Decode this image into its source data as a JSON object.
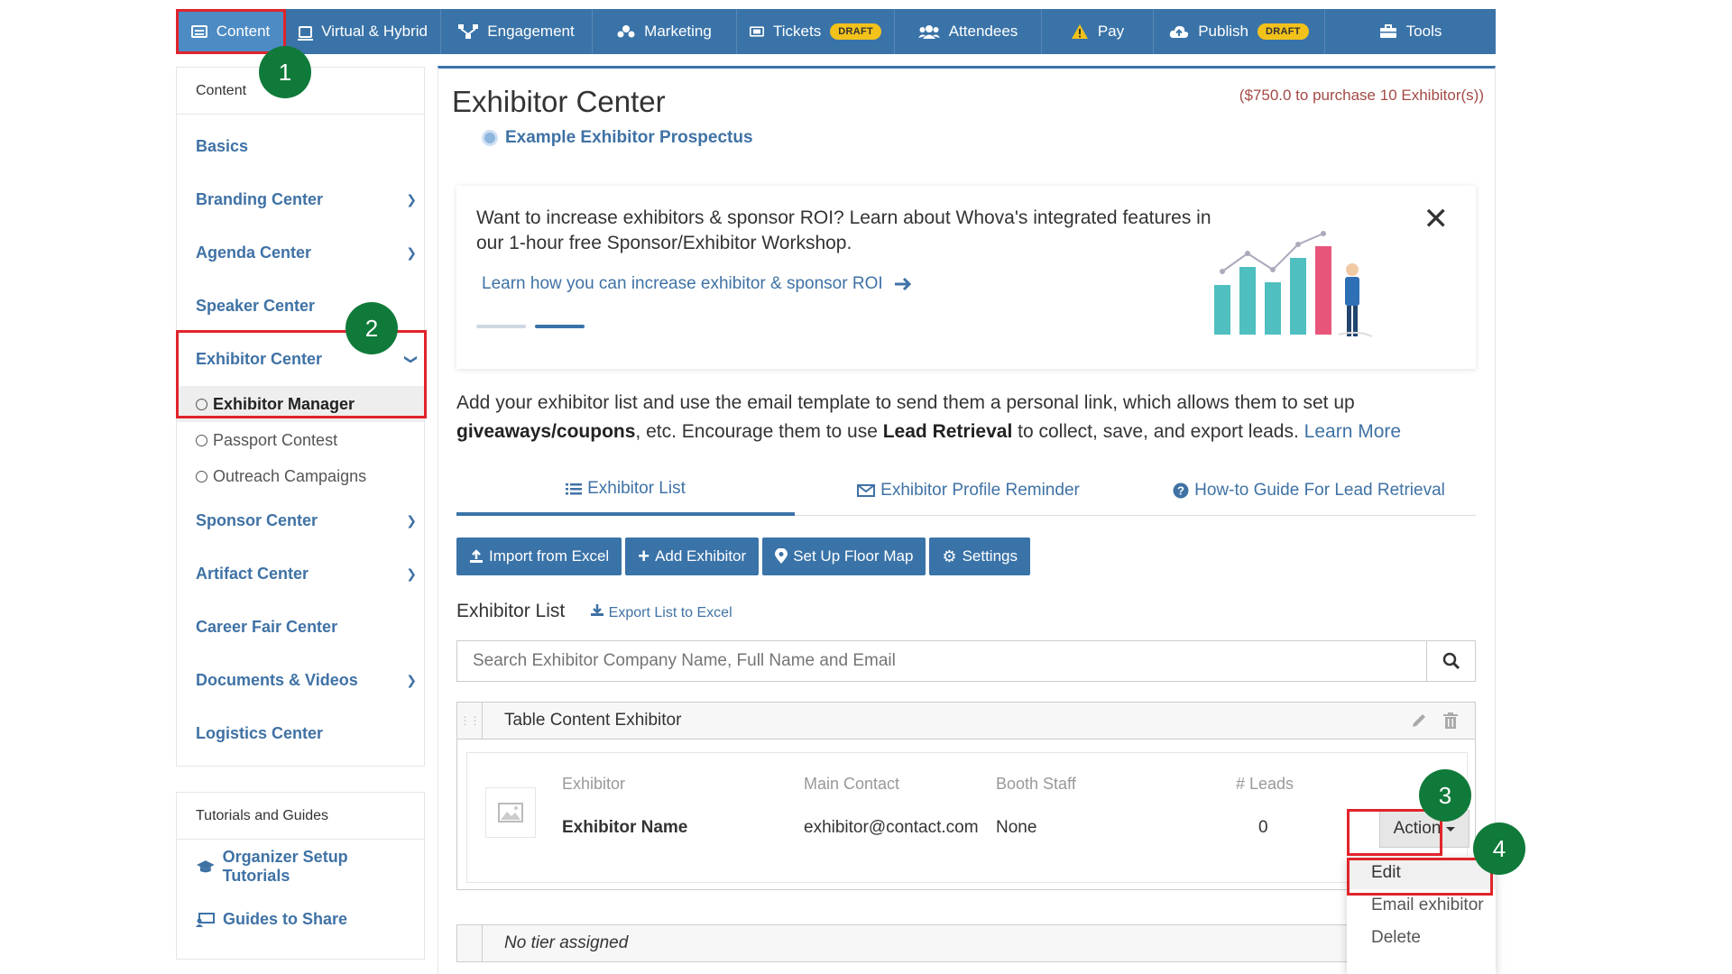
{
  "topnav": {
    "items": [
      {
        "label": "Content",
        "icon": "content-icon"
      },
      {
        "label": "Virtual & Hybrid",
        "icon": "monitor-icon"
      },
      {
        "label": "Engagement",
        "icon": "engagement-icon"
      },
      {
        "label": "Marketing",
        "icon": "marketing-icon"
      },
      {
        "label": "Tickets",
        "icon": "ticket-icon",
        "badge": "DRAFT"
      },
      {
        "label": "Attendees",
        "icon": "attendees-icon"
      },
      {
        "label": "Pay",
        "icon": "warning-icon"
      },
      {
        "label": "Publish",
        "icon": "cloud-upload-icon",
        "badge": "DRAFT"
      },
      {
        "label": "Tools",
        "icon": "toolbox-icon"
      }
    ]
  },
  "steps": [
    "1",
    "2",
    "3",
    "4"
  ],
  "sidebar": {
    "header": "Content",
    "items": [
      {
        "label": "Basics"
      },
      {
        "label": "Branding Center"
      },
      {
        "label": "Agenda Center"
      },
      {
        "label": "Speaker Center"
      },
      {
        "label": "Exhibitor Center"
      },
      {
        "label": "Sponsor Center"
      },
      {
        "label": "Artifact Center"
      },
      {
        "label": "Career Fair Center"
      },
      {
        "label": "Documents & Videos"
      },
      {
        "label": "Logistics Center"
      }
    ],
    "sub_items": [
      {
        "label": "Exhibitor Manager"
      },
      {
        "label": "Passport Contest"
      },
      {
        "label": "Outreach Campaigns"
      }
    ]
  },
  "tutorials": {
    "header": "Tutorials and Guides",
    "items": [
      {
        "label": "Organizer Setup Tutorials"
      },
      {
        "label": "Guides to Share"
      }
    ]
  },
  "main": {
    "title": "Exhibitor Center",
    "price_note": "($750.0 to purchase 10 Exhibitor(s))",
    "prospectus": "Example Exhibitor Prospectus",
    "banner": {
      "text": "Want to increase exhibitors & sponsor ROI? Learn about Whova's integrated features in our 1-hour free Sponsor/Exhibitor Workshop.",
      "link": "Learn how you can increase exhibitor & sponsor ROI"
    },
    "intro": {
      "part1": "Add your exhibitor list and use the email template to send them a personal link, which allows them to set up ",
      "bold1": "giveaways/coupons",
      "part2": ", etc. Encourage them to use ",
      "bold2": "Lead Retrieval",
      "part3": " to collect, save, and export leads. ",
      "learn_more": "Learn More"
    },
    "tabs": [
      {
        "label": "Exhibitor List"
      },
      {
        "label": "Exhibitor Profile Reminder"
      },
      {
        "label": "How-to Guide For Lead Retrieval"
      }
    ],
    "buttons": {
      "import": "Import from Excel",
      "add": "Add Exhibitor",
      "floor_map": "Set Up Floor Map",
      "settings": "Settings"
    },
    "list_title": "Exhibitor List",
    "export_label": "Export List to Excel",
    "search_placeholder": "Search Exhibitor Company Name, Full Name and Email",
    "tier_name": "Table Content Exhibitor",
    "columns": {
      "exhibitor": "Exhibitor",
      "main_contact": "Main Contact",
      "booth_staff": "Booth Staff",
      "leads": "# Leads"
    },
    "row": {
      "name": "Exhibitor Name",
      "contact": "exhibitor@contact.com",
      "staff": "None",
      "leads": "0"
    },
    "action_label": "Action",
    "dropdown": [
      "Edit",
      "Email exhibitor",
      "Delete"
    ],
    "no_tier": "No tier assigned"
  },
  "colors": {
    "nav_bg": "#3a73a8",
    "accent": "#3f72a5",
    "highlight": "#e0242b",
    "step_badge": "#107a3a",
    "draft_badge": "#f2c21b"
  }
}
